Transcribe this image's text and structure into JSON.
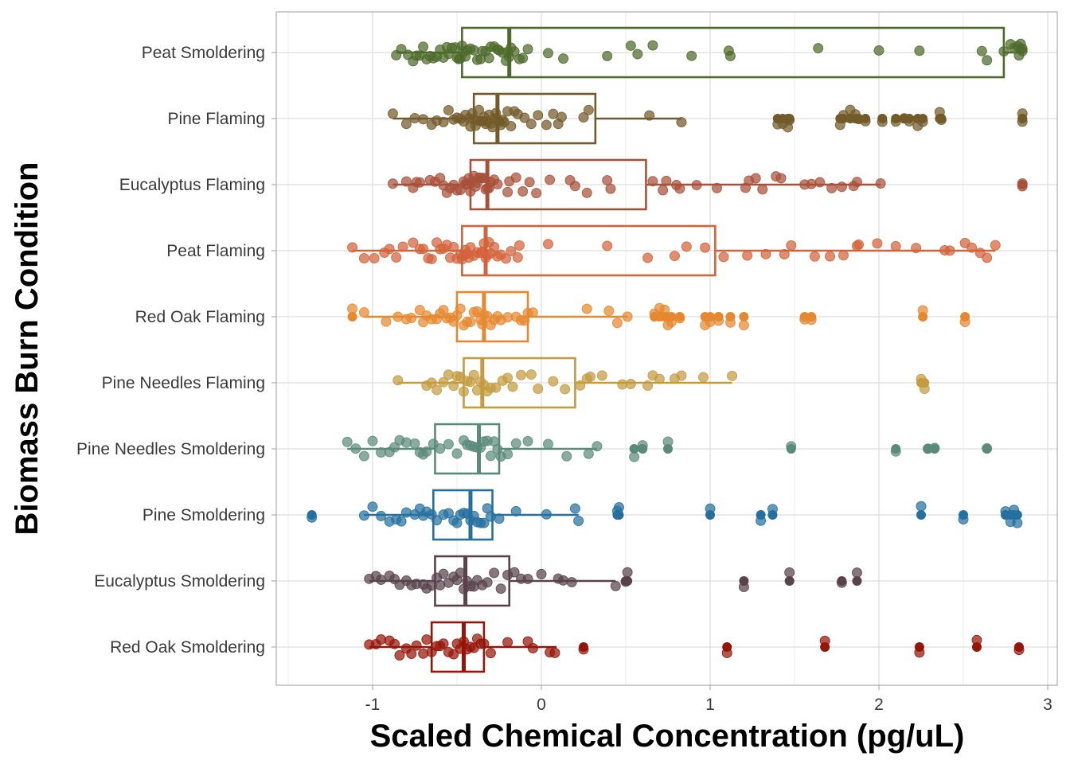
{
  "chart_data": {
    "type": "boxplot-jitter",
    "title": "",
    "xlabel": "Scaled Chemical Concentration (pg/uL)",
    "ylabel": "Biomass Burn Condition",
    "xlim": [
      -1.58,
      3.05
    ],
    "x_ticks": [
      -1,
      0,
      1,
      2,
      3
    ],
    "x_tick_labels": [
      "-1",
      "0",
      "1",
      "2",
      "3"
    ],
    "grid": true,
    "legend": "none",
    "categories": [
      "Peat Smoldering",
      "Pine Flaming",
      "Eucalyptus Flaming",
      "Peat Flaming",
      "Red Oak Flaming",
      "Pine Needles Flaming",
      "Pine Needles Smoldering",
      "Pine Smoldering",
      "Eucalyptus Smoldering",
      "Red Oak Smoldering"
    ],
    "series": [
      {
        "name": "Peat Smoldering",
        "color": "#4E6B2B",
        "q1": -0.47,
        "median": -0.19,
        "q3": 2.74,
        "whisker_low": -0.86,
        "whisker_high": 2.85,
        "points": [
          -0.86,
          -0.83,
          -0.79,
          -0.76,
          -0.74,
          -0.72,
          -0.7,
          -0.68,
          -0.66,
          -0.64,
          -0.62,
          -0.6,
          -0.58,
          -0.56,
          -0.55,
          -0.53,
          -0.51,
          -0.5,
          -0.49,
          -0.48,
          -0.47,
          -0.46,
          -0.45,
          -0.44,
          -0.42,
          -0.4,
          -0.38,
          -0.36,
          -0.35,
          -0.33,
          -0.31,
          -0.3,
          -0.28,
          -0.26,
          -0.25,
          -0.23,
          -0.21,
          -0.2,
          -0.19,
          -0.18,
          -0.16,
          -0.13,
          -0.11,
          -0.08,
          0.04,
          0.13,
          0.39,
          0.53,
          0.57,
          0.66,
          0.89,
          1.11,
          1.12,
          1.64,
          2.0,
          2.24,
          2.61,
          2.64,
          2.74,
          2.78,
          2.8,
          2.82,
          2.83,
          2.84,
          2.84,
          2.85,
          2.85
        ]
      },
      {
        "name": "Pine Flaming",
        "color": "#735A2A",
        "q1": -0.4,
        "median": -0.26,
        "q3": 0.32,
        "whisker_low": -0.88,
        "whisker_high": 0.83,
        "points": [
          -0.88,
          -0.8,
          -0.75,
          -0.7,
          -0.65,
          -0.62,
          -0.58,
          -0.55,
          -0.52,
          -0.5,
          -0.48,
          -0.46,
          -0.45,
          -0.43,
          -0.42,
          -0.41,
          -0.4,
          -0.39,
          -0.38,
          -0.37,
          -0.36,
          -0.35,
          -0.34,
          -0.33,
          -0.32,
          -0.31,
          -0.3,
          -0.29,
          -0.28,
          -0.27,
          -0.26,
          -0.25,
          -0.24,
          -0.23,
          -0.22,
          -0.2,
          -0.18,
          -0.16,
          -0.14,
          -0.1,
          -0.06,
          -0.02,
          0.03,
          0.07,
          0.1,
          0.12,
          0.25,
          0.28,
          0.64,
          0.83,
          1.4,
          1.43,
          1.46,
          1.47,
          1.77,
          1.79,
          1.83,
          1.86,
          1.88,
          1.92,
          2.02,
          2.1,
          2.15,
          2.18,
          2.23,
          2.26,
          2.36,
          2.37,
          2.85,
          2.85
        ]
      },
      {
        "name": "Eucalyptus Flaming",
        "color": "#A8503A",
        "q1": -0.42,
        "median": -0.32,
        "q3": 0.62,
        "whisker_low": -0.88,
        "whisker_high": 2.01,
        "points": [
          -0.88,
          -0.8,
          -0.76,
          -0.74,
          -0.72,
          -0.66,
          -0.63,
          -0.6,
          -0.58,
          -0.56,
          -0.54,
          -0.52,
          -0.5,
          -0.48,
          -0.46,
          -0.45,
          -0.44,
          -0.43,
          -0.42,
          -0.41,
          -0.4,
          -0.39,
          -0.38,
          -0.37,
          -0.36,
          -0.35,
          -0.34,
          -0.33,
          -0.32,
          -0.31,
          -0.3,
          -0.28,
          -0.26,
          -0.2,
          -0.19,
          -0.15,
          -0.11,
          -0.07,
          -0.03,
          0.05,
          0.17,
          0.2,
          0.27,
          0.39,
          0.41,
          0.66,
          0.72,
          0.74,
          0.8,
          0.82,
          0.92,
          1.04,
          1.21,
          1.23,
          1.27,
          1.31,
          1.39,
          1.42,
          1.56,
          1.6,
          1.65,
          1.72,
          1.78,
          1.85,
          1.87,
          2.01,
          2.85,
          2.85
        ]
      },
      {
        "name": "Peat Flaming",
        "color": "#D2633A",
        "q1": -0.47,
        "median": -0.33,
        "q3": 1.03,
        "whisker_low": -1.12,
        "whisker_high": 2.69,
        "points": [
          -1.12,
          -1.05,
          -0.99,
          -0.93,
          -0.9,
          -0.86,
          -0.82,
          -0.76,
          -0.72,
          -0.7,
          -0.67,
          -0.65,
          -0.62,
          -0.6,
          -0.58,
          -0.56,
          -0.54,
          -0.52,
          -0.5,
          -0.48,
          -0.47,
          -0.46,
          -0.45,
          -0.44,
          -0.43,
          -0.42,
          -0.4,
          -0.38,
          -0.36,
          -0.35,
          -0.34,
          -0.33,
          -0.32,
          -0.31,
          -0.3,
          -0.28,
          -0.26,
          -0.24,
          -0.21,
          -0.18,
          -0.14,
          -0.13,
          0.04,
          0.39,
          0.63,
          0.79,
          0.86,
          0.97,
          1.08,
          1.22,
          1.33,
          1.44,
          1.48,
          1.62,
          1.71,
          1.79,
          1.87,
          1.88,
          1.99,
          2.1,
          2.22,
          2.39,
          2.42,
          2.51,
          2.55,
          2.6,
          2.64,
          2.69
        ]
      },
      {
        "name": "Red Oak Flaming",
        "color": "#E5882F",
        "q1": -0.5,
        "median": -0.34,
        "q3": -0.08,
        "whisker_low": -1.05,
        "whisker_high": 0.51,
        "points": [
          -1.12,
          -1.05,
          -0.92,
          -0.85,
          -0.8,
          -0.77,
          -0.72,
          -0.7,
          -0.68,
          -0.65,
          -0.62,
          -0.6,
          -0.58,
          -0.56,
          -0.54,
          -0.52,
          -0.5,
          -0.48,
          -0.46,
          -0.44,
          -0.42,
          -0.4,
          -0.38,
          -0.36,
          -0.35,
          -0.34,
          -0.32,
          -0.3,
          -0.28,
          -0.26,
          -0.24,
          -0.2,
          -0.15,
          -0.12,
          -0.1,
          -0.08,
          -0.05,
          0.27,
          0.4,
          0.45,
          0.51,
          0.67,
          0.7,
          0.73,
          0.75,
          0.77,
          0.82,
          0.97,
          1.0,
          1.05,
          1.12,
          1.2,
          1.56,
          1.6,
          2.26,
          2.51
        ]
      },
      {
        "name": "Pine Needles Flaming",
        "color": "#C49B40",
        "q1": -0.46,
        "median": -0.35,
        "q3": 0.2,
        "whisker_low": -0.85,
        "whisker_high": 1.13,
        "points": [
          -0.85,
          -0.68,
          -0.65,
          -0.62,
          -0.58,
          -0.55,
          -0.52,
          -0.5,
          -0.48,
          -0.46,
          -0.44,
          -0.42,
          -0.4,
          -0.38,
          -0.36,
          -0.34,
          -0.32,
          -0.3,
          -0.27,
          -0.23,
          -0.2,
          -0.17,
          -0.12,
          -0.06,
          -0.02,
          0.07,
          0.14,
          0.23,
          0.27,
          0.29,
          0.36,
          0.48,
          0.53,
          0.63,
          0.66,
          0.7,
          0.79,
          0.83,
          0.96,
          1.13,
          2.25,
          2.27
        ]
      },
      {
        "name": "Pine Needles Smoldering",
        "color": "#5B8A7B",
        "q1": -0.63,
        "median": -0.37,
        "q3": -0.25,
        "whisker_low": -1.15,
        "whisker_high": 0.33,
        "points": [
          -1.15,
          -1.1,
          -1.05,
          -1.0,
          -0.95,
          -0.9,
          -0.87,
          -0.84,
          -0.8,
          -0.75,
          -0.72,
          -0.7,
          -0.68,
          -0.64,
          -0.6,
          -0.55,
          -0.5,
          -0.46,
          -0.44,
          -0.42,
          -0.4,
          -0.38,
          -0.36,
          -0.34,
          -0.32,
          -0.3,
          -0.28,
          -0.26,
          -0.24,
          -0.2,
          -0.15,
          -0.08,
          0.04,
          0.15,
          0.28,
          0.33,
          0.55,
          0.6,
          0.75,
          1.48,
          2.1,
          2.29,
          2.33,
          2.64
        ]
      },
      {
        "name": "Pine Smoldering",
        "color": "#25709F",
        "q1": -0.64,
        "median": -0.42,
        "q3": -0.29,
        "whisker_low": -1.05,
        "whisker_high": 0.22,
        "points": [
          -1.36,
          -1.05,
          -1.0,
          -0.95,
          -0.9,
          -0.86,
          -0.83,
          -0.8,
          -0.75,
          -0.72,
          -0.7,
          -0.68,
          -0.65,
          -0.62,
          -0.58,
          -0.55,
          -0.52,
          -0.5,
          -0.48,
          -0.46,
          -0.44,
          -0.42,
          -0.4,
          -0.38,
          -0.36,
          -0.34,
          -0.32,
          -0.3,
          -0.25,
          -0.15,
          0.03,
          0.2,
          0.22,
          0.45,
          0.46,
          1.0,
          1.3,
          1.37,
          2.25,
          2.5,
          2.75,
          2.78,
          2.8,
          2.82
        ]
      },
      {
        "name": "Eucalyptus Smoldering",
        "color": "#58434B",
        "q1": -0.63,
        "median": -0.45,
        "q3": -0.19,
        "whisker_low": -1.02,
        "whisker_high": 0.44,
        "points": [
          -1.02,
          -0.98,
          -0.95,
          -0.9,
          -0.87,
          -0.84,
          -0.8,
          -0.77,
          -0.74,
          -0.7,
          -0.68,
          -0.65,
          -0.62,
          -0.6,
          -0.58,
          -0.55,
          -0.52,
          -0.5,
          -0.48,
          -0.46,
          -0.44,
          -0.42,
          -0.4,
          -0.38,
          -0.35,
          -0.32,
          -0.28,
          -0.24,
          -0.2,
          -0.16,
          -0.12,
          -0.08,
          0.0,
          0.1,
          0.13,
          0.18,
          0.44,
          0.5,
          0.51,
          1.2,
          1.47,
          1.78,
          1.87
        ]
      },
      {
        "name": "Red Oak Smoldering",
        "color": "#951508",
        "q1": -0.65,
        "median": -0.46,
        "q3": -0.34,
        "whisker_low": -1.02,
        "whisker_high": 0.09,
        "points": [
          -1.02,
          -0.98,
          -0.95,
          -0.9,
          -0.87,
          -0.84,
          -0.8,
          -0.77,
          -0.74,
          -0.7,
          -0.68,
          -0.65,
          -0.62,
          -0.6,
          -0.58,
          -0.55,
          -0.52,
          -0.5,
          -0.48,
          -0.46,
          -0.44,
          -0.42,
          -0.4,
          -0.38,
          -0.36,
          -0.34,
          -0.3,
          -0.2,
          -0.08,
          -0.05,
          0.05,
          0.08,
          0.25,
          1.1,
          1.68,
          2.24,
          2.58,
          2.83
        ]
      }
    ]
  }
}
